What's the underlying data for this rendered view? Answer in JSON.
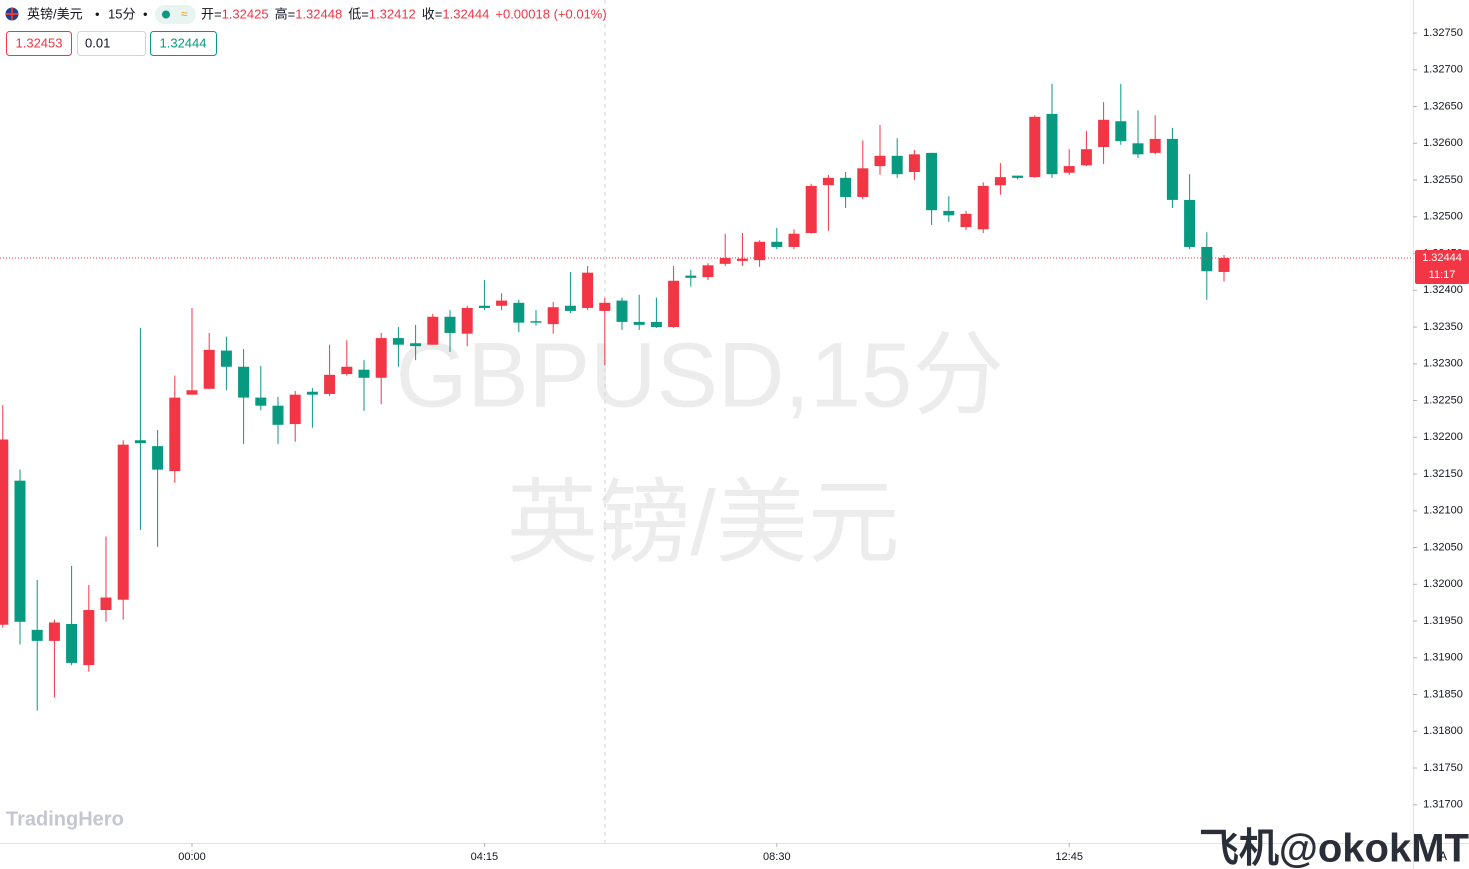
{
  "chart_data": {
    "type": "candlestick",
    "symbol": "英镑/美元",
    "interval": "15分",
    "ohlc_legend": [
      {
        "label": "开=",
        "value": "1.32425"
      },
      {
        "label": "高=",
        "value": "1.32448"
      },
      {
        "label": "低=",
        "value": "1.32412"
      },
      {
        "label": "收=",
        "value": "1.32444"
      }
    ],
    "change": "+0.00018 (+0.01%)",
    "sell_price": "1.32453",
    "lot": "0.01",
    "buy_price": "1.32444",
    "watermark_symbol": "GBPUSD,15分",
    "watermark_name": "英镑/美元",
    "logo": "TradingHero",
    "credit": "飞机@okokMT",
    "scale_mode": "A",
    "last_price": 1.32444,
    "countdown": "11:17",
    "up_color": "#f23645",
    "down_color": "#089981",
    "categories": [
      null,
      null,
      null,
      null,
      null,
      null,
      null,
      null,
      null,
      null,
      null,
      "00:00",
      null,
      null,
      null,
      null,
      null,
      null,
      null,
      null,
      null,
      null,
      null,
      null,
      null,
      null,
      null,
      null,
      "04:15",
      null,
      null,
      null,
      null,
      null,
      null,
      null,
      null,
      null,
      null,
      null,
      null,
      null,
      null,
      null,
      null,
      "08:30",
      null,
      null,
      null,
      null,
      null,
      null,
      null,
      null,
      null,
      null,
      null,
      null,
      null,
      null,
      null,
      null,
      "12:45",
      null,
      null,
      null,
      null,
      null,
      null,
      null,
      null,
      null
    ],
    "open": [
      1.31945,
      1.32141,
      1.31938,
      1.31923,
      1.31946,
      1.3189,
      1.31965,
      1.31979,
      1.32196,
      1.32188,
      1.32154,
      1.32258,
      1.32266,
      1.32318,
      1.32296,
      1.32254,
      1.32243,
      1.32218,
      1.32262,
      1.32259,
      1.32286,
      1.32292,
      1.32281,
      1.32335,
      1.32328,
      1.32326,
      1.32364,
      1.32341,
      1.32379,
      1.32379,
      1.32383,
      1.32358,
      1.32354,
      1.32379,
      1.32376,
      1.32372,
      1.32386,
      1.32357,
      1.32357,
      1.3235,
      1.3242,
      1.32418,
      1.32436,
      1.3244,
      1.32441,
      1.32466,
      1.32459,
      1.32478,
      1.32543,
      1.32553,
      1.32527,
      1.32569,
      1.32583,
      1.32561,
      1.32587,
      1.32508,
      1.32486,
      1.32483,
      1.32543,
      1.32556,
      1.32554,
      1.3264,
      1.3256,
      1.3257,
      1.32595,
      1.3263,
      1.326,
      1.32587,
      1.32606,
      1.32523,
      1.32459,
      1.32425
    ],
    "high": [
      1.32244,
      1.32156,
      1.32006,
      1.31952,
      1.32025,
      1.31999,
      1.32065,
      1.32196,
      1.32349,
      1.3221,
      1.32284,
      1.32376,
      1.32342,
      1.32337,
      1.3232,
      1.32297,
      1.32255,
      1.32263,
      1.32267,
      1.32326,
      1.32332,
      1.32305,
      1.32342,
      1.3235,
      1.32353,
      1.32368,
      1.32373,
      1.32379,
      1.32414,
      1.32396,
      1.32387,
      1.32373,
      1.32384,
      1.32425,
      1.32433,
      1.3239,
      1.3239,
      1.32394,
      1.3239,
      1.32433,
      1.32428,
      1.32437,
      1.32477,
      1.32478,
      1.32468,
      1.32485,
      1.32483,
      1.32545,
      1.32557,
      1.32561,
      1.32604,
      1.32625,
      1.32607,
      1.32591,
      1.32587,
      1.32528,
      1.32508,
      1.32547,
      1.32573,
      1.32556,
      1.32638,
      1.32681,
      1.32592,
      1.32617,
      1.32656,
      1.32681,
      1.32645,
      1.32638,
      1.32621,
      1.32558,
      1.32479,
      1.32448
    ],
    "low": [
      1.31941,
      1.31918,
      1.31828,
      1.31846,
      1.3189,
      1.31881,
      1.31949,
      1.31952,
      1.32074,
      1.32051,
      1.32138,
      1.32258,
      1.32266,
      1.32264,
      1.32191,
      1.32237,
      1.32191,
      1.32194,
      1.32213,
      1.32256,
      1.32284,
      1.32236,
      1.32245,
      1.32296,
      1.32305,
      1.32326,
      1.32316,
      1.32324,
      1.32373,
      1.32373,
      1.32343,
      1.32352,
      1.32341,
      1.32369,
      1.32373,
      1.32298,
      1.32346,
      1.32346,
      1.32349,
      1.32349,
      1.32405,
      1.32414,
      1.32433,
      1.32433,
      1.32432,
      1.32456,
      1.32456,
      1.32477,
      1.32481,
      1.32512,
      1.32524,
      1.32557,
      1.32553,
      1.3255,
      1.32489,
      1.32493,
      1.32482,
      1.32478,
      1.3253,
      1.32551,
      1.32553,
      1.32553,
      1.32557,
      1.32569,
      1.32572,
      1.32598,
      1.3258,
      1.32585,
      1.32512,
      1.32456,
      1.32387,
      1.32412
    ],
    "close": [
      1.32197,
      1.31949,
      1.31923,
      1.31948,
      1.31893,
      1.31965,
      1.31982,
      1.3219,
      1.32192,
      1.32156,
      1.32254,
      1.32264,
      1.32319,
      1.32296,
      1.32254,
      1.32243,
      1.32217,
      1.32258,
      1.32258,
      1.32285,
      1.32296,
      1.32281,
      1.32335,
      1.32326,
      1.32324,
      1.32364,
      1.32342,
      1.32376,
      1.32376,
      1.32386,
      1.32356,
      1.32356,
      1.32377,
      1.32372,
      1.32424,
      1.32383,
      1.32357,
      1.32353,
      1.3235,
      1.32413,
      1.32417,
      1.32434,
      1.32444,
      1.32443,
      1.32466,
      1.32459,
      1.32477,
      1.32542,
      1.32553,
      1.32527,
      1.32566,
      1.32583,
      1.32558,
      1.32585,
      1.32509,
      1.32502,
      1.32504,
      1.32542,
      1.32554,
      1.32553,
      1.32636,
      1.32558,
      1.32569,
      1.32592,
      1.32632,
      1.32603,
      1.32585,
      1.32606,
      1.32523,
      1.32459,
      1.32426,
      1.32444
    ],
    "ylim": [
      1.31648,
      1.32795
    ],
    "yticks": [
      {
        "value": 1.317,
        "label": "1.31700"
      },
      {
        "value": 1.3175,
        "label": "1.31750"
      },
      {
        "value": 1.318,
        "label": "1.31800"
      },
      {
        "value": 1.3185,
        "label": "1.31850"
      },
      {
        "value": 1.319,
        "label": "1.31900"
      },
      {
        "value": 1.3195,
        "label": "1.31950"
      },
      {
        "value": 1.32,
        "label": "1.32000"
      },
      {
        "value": 1.3205,
        "label": "1.32050"
      },
      {
        "value": 1.321,
        "label": "1.32100"
      },
      {
        "value": 1.3215,
        "label": "1.32150"
      },
      {
        "value": 1.322,
        "label": "1.32200"
      },
      {
        "value": 1.3225,
        "label": "1.32250"
      },
      {
        "value": 1.323,
        "label": "1.32300"
      },
      {
        "value": 1.3235,
        "label": "1.32350"
      },
      {
        "value": 1.324,
        "label": "1.32400"
      },
      {
        "value": 1.3245,
        "label": "1.32450"
      },
      {
        "value": 1.325,
        "label": "1.32500"
      },
      {
        "value": 1.3255,
        "label": "1.32550"
      },
      {
        "value": 1.326,
        "label": "1.32600"
      },
      {
        "value": 1.3265,
        "label": "1.32650"
      },
      {
        "value": 1.327,
        "label": "1.32700"
      },
      {
        "value": 1.3275,
        "label": "1.32750"
      }
    ]
  }
}
